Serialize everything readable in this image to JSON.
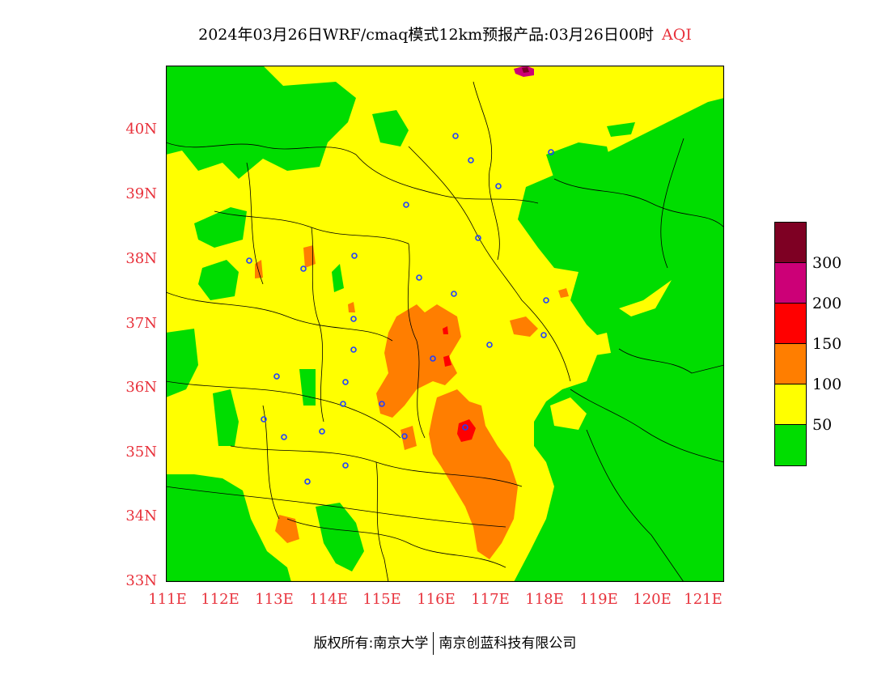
{
  "header": {
    "title": "2024年03月26日WRF/cmaq模式12km预报产品:03月26日00时",
    "variable": "AQI"
  },
  "axes": {
    "lat_ticks": [
      "33N",
      "34N",
      "35N",
      "36N",
      "37N",
      "38N",
      "39N",
      "40N"
    ],
    "lon_ticks": [
      "111E",
      "112E",
      "113E",
      "114E",
      "115E",
      "116E",
      "117E",
      "118E",
      "119E",
      "120E",
      "121E"
    ],
    "lat_range": [
      33,
      41
    ],
    "lon_range": [
      111,
      121.3
    ]
  },
  "legend": {
    "labels": [
      "50",
      "100",
      "150",
      "200",
      "300"
    ],
    "colors": [
      "#00dd00",
      "#ffff00",
      "#ff7e00",
      "#ff0000",
      "#cc0077",
      "#7e0023"
    ]
  },
  "footer": {
    "left": "版权所有:南京大学",
    "right": "南京创蓝科技有限公司"
  }
}
